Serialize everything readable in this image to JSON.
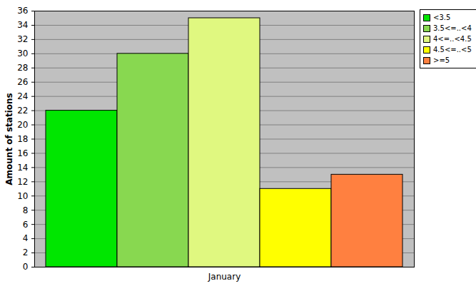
{
  "chart_data": {
    "type": "bar",
    "categories": [
      "January"
    ],
    "series": [
      {
        "name": "<3.5",
        "color": "#00e600",
        "values": [
          22
        ]
      },
      {
        "name": "3.5<=..<4",
        "color": "#88d850",
        "values": [
          30
        ]
      },
      {
        "name": "4<=..<4.5",
        "color": "#e0f880",
        "values": [
          35
        ]
      },
      {
        "name": "4.5<=..<5",
        "color": "#ffff00",
        "values": [
          11
        ]
      },
      {
        "name": ">=5",
        "color": "#ff8040",
        "values": [
          13
        ]
      }
    ],
    "y_label": "Amount of stations",
    "ylim": [
      0,
      36
    ],
    "yticks": [
      0,
      2,
      4,
      6,
      8,
      10,
      12,
      14,
      16,
      18,
      20,
      22,
      24,
      26,
      28,
      30,
      32,
      34,
      36
    ],
    "grid": true,
    "legend": "top-right"
  }
}
